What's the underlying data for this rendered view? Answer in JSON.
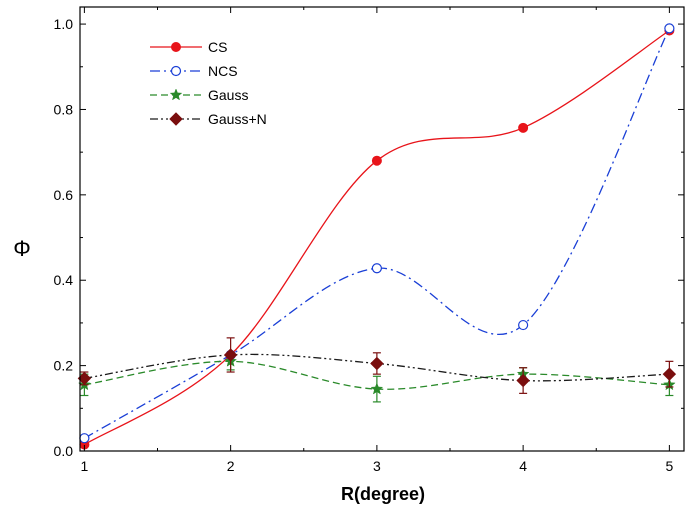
{
  "chart_data": {
    "type": "line",
    "title": "",
    "xlabel": "R(degree)",
    "ylabel": "Φ",
    "xlim": [
      0.97,
      5.1
    ],
    "ylim": [
      0.0,
      1.04
    ],
    "xticks": [
      "1",
      "2",
      "3",
      "4",
      "5"
    ],
    "yticks": [
      "0.0",
      "0.2",
      "0.4",
      "0.6",
      "0.8",
      "1.0"
    ],
    "grid": false,
    "legend_position": "top-left",
    "series": [
      {
        "name": "CS",
        "color": "#e8141a",
        "line_style": "solid",
        "marker": "filled-circle",
        "x": [
          1,
          2,
          3,
          4,
          5
        ],
        "y": [
          0.015,
          0.225,
          0.68,
          0.757,
          0.985
        ]
      },
      {
        "name": "NCS",
        "color": "#1a3fd6",
        "line_style": "dash-dot",
        "marker": "open-circle",
        "x": [
          1,
          2,
          3,
          4,
          5
        ],
        "y": [
          0.03,
          0.225,
          0.428,
          0.295,
          0.99
        ]
      },
      {
        "name": "Gauss",
        "color": "#2a8a2a",
        "line_style": "dashed",
        "marker": "star",
        "x": [
          1,
          2,
          3,
          4,
          5
        ],
        "y": [
          0.155,
          0.21,
          0.145,
          0.18,
          0.155
        ],
        "error": [
          0.025,
          0.02,
          0.03,
          0.015,
          0.025
        ]
      },
      {
        "name": "Gauss+N",
        "color": "#7a0e0e",
        "line_color": "#1a1a1a",
        "line_style": "dash-dot-dot",
        "marker": "filled-diamond",
        "x": [
          1,
          2,
          3,
          4,
          5
        ],
        "y": [
          0.17,
          0.225,
          0.205,
          0.165,
          0.18
        ],
        "error": [
          0.015,
          0.04,
          0.025,
          0.03,
          0.03
        ]
      }
    ]
  }
}
